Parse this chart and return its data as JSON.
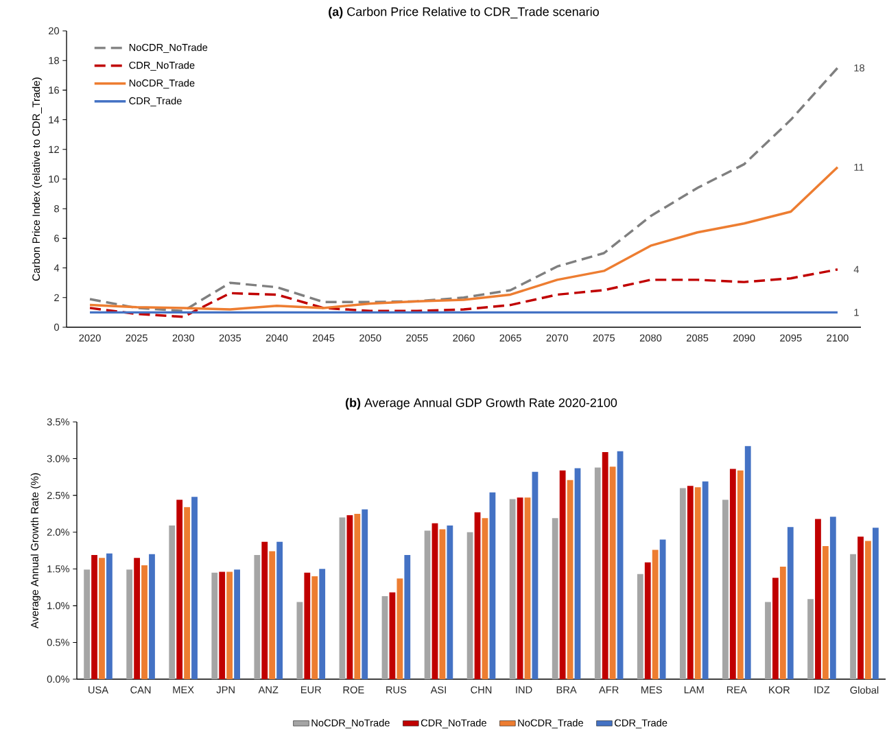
{
  "chart_data": [
    {
      "type": "line",
      "title": "**(a)** Carbon Price Relative to CDR_Trade scenario",
      "ylabel": "Carbon Price Index (relative to CDR_Trade)",
      "x": [
        2020,
        2025,
        2030,
        2035,
        2040,
        2045,
        2050,
        2055,
        2060,
        2065,
        2070,
        2075,
        2080,
        2085,
        2090,
        2095,
        2100
      ],
      "xlim": [
        2017.5,
        2102.5
      ],
      "xticks": [
        2020,
        2025,
        2030,
        2035,
        2040,
        2045,
        2050,
        2055,
        2060,
        2065,
        2070,
        2075,
        2080,
        2085,
        2090,
        2095,
        2100
      ],
      "ylim": [
        0,
        20
      ],
      "yticks": [
        0,
        2,
        4,
        6,
        8,
        10,
        12,
        14,
        16,
        18,
        20
      ],
      "legend": "top left",
      "series": [
        {
          "name": "NoCDR_NoTrade",
          "color": "#7f7f7f",
          "line_style": "dashed",
          "values": [
            1.9,
            1.3,
            1.1,
            3.0,
            2.7,
            1.7,
            1.7,
            1.75,
            2.0,
            2.5,
            4.1,
            5.0,
            7.5,
            9.4,
            11.0,
            14.0,
            17.5
          ],
          "value_labels": [
            null,
            null,
            null,
            null,
            null,
            null,
            null,
            null,
            null,
            null,
            null,
            null,
            null,
            null,
            null,
            null,
            "18"
          ]
        },
        {
          "name": "CDR_NoTrade",
          "color": "#c00000",
          "line_style": "dashed",
          "values": [
            1.3,
            0.9,
            0.7,
            2.3,
            2.2,
            1.3,
            1.1,
            1.1,
            1.2,
            1.5,
            2.2,
            2.5,
            3.2,
            3.2,
            3.05,
            3.3,
            3.9
          ],
          "value_labels": [
            null,
            null,
            null,
            null,
            null,
            null,
            null,
            null,
            null,
            null,
            null,
            null,
            null,
            null,
            null,
            null,
            "4"
          ]
        },
        {
          "name": "NoCDR_Trade",
          "color": "#ed7d31",
          "line_style": "solid",
          "values": [
            1.5,
            1.35,
            1.3,
            1.2,
            1.45,
            1.3,
            1.6,
            1.75,
            1.85,
            2.2,
            3.2,
            3.8,
            5.5,
            6.4,
            7.0,
            7.8,
            10.8
          ],
          "value_labels": [
            null,
            null,
            null,
            null,
            null,
            null,
            null,
            null,
            null,
            null,
            null,
            null,
            null,
            null,
            null,
            null,
            "11"
          ]
        },
        {
          "name": "CDR_Trade",
          "color": "#4472c4",
          "line_style": "solid",
          "values": [
            1,
            1,
            1,
            1,
            1,
            1,
            1,
            1,
            1,
            1,
            1,
            1,
            1,
            1,
            1,
            1,
            1
          ],
          "value_labels": [
            null,
            null,
            null,
            null,
            null,
            null,
            null,
            null,
            null,
            null,
            null,
            null,
            null,
            null,
            null,
            null,
            "1"
          ]
        }
      ]
    },
    {
      "type": "bar",
      "title": "**(b)** Average Annual GDP Growth Rate 2020-2100",
      "ylabel": "Average Annual Growth Rate (%)",
      "categories": [
        "USA",
        "CAN",
        "MEX",
        "JPN",
        "ANZ",
        "EUR",
        "ROE",
        "RUS",
        "ASI",
        "CHN",
        "IND",
        "BRA",
        "AFR",
        "MES",
        "LAM",
        "REA",
        "KOR",
        "IDZ",
        "Global"
      ],
      "ylim": [
        0,
        3.5
      ],
      "yticks": [
        {
          "value": 0,
          "label": "0.0%"
        },
        {
          "value": 0.5,
          "label": "0.5%"
        },
        {
          "value": 1,
          "label": "1.0%"
        },
        {
          "value": 1.5,
          "label": "1.5%"
        },
        {
          "value": 2,
          "label": "2.0%"
        },
        {
          "value": 2.5,
          "label": "2.5%"
        },
        {
          "value": 3,
          "label": "3.0%"
        },
        {
          "value": 3.5,
          "label": "3.5%"
        }
      ],
      "legend": "bottom",
      "series": [
        {
          "name": "NoCDR_NoTrade",
          "color": "#a5a5a5",
          "values": [
            1.49,
            1.49,
            2.09,
            1.45,
            1.69,
            1.05,
            2.2,
            1.13,
            2.02,
            2.0,
            2.45,
            2.19,
            2.88,
            1.43,
            2.6,
            2.44,
            1.05,
            1.09,
            1.7
          ]
        },
        {
          "name": "CDR_NoTrade",
          "color": "#c00000",
          "values": [
            1.69,
            1.65,
            2.44,
            1.46,
            1.87,
            1.45,
            2.23,
            1.18,
            2.12,
            2.27,
            2.47,
            2.84,
            3.09,
            1.59,
            2.63,
            2.86,
            1.38,
            2.18,
            1.94
          ]
        },
        {
          "name": "NoCDR_Trade",
          "color": "#ed7d31",
          "values": [
            1.65,
            1.55,
            2.34,
            1.46,
            1.74,
            1.4,
            2.25,
            1.37,
            2.04,
            2.19,
            2.47,
            2.71,
            2.89,
            1.76,
            2.61,
            2.84,
            1.53,
            1.81,
            1.88
          ]
        },
        {
          "name": "CDR_Trade",
          "color": "#4472c4",
          "values": [
            1.71,
            1.7,
            2.48,
            1.49,
            1.87,
            1.5,
            2.31,
            1.69,
            2.09,
            2.54,
            2.82,
            2.87,
            3.1,
            1.9,
            2.69,
            3.17,
            2.07,
            2.21,
            2.06
          ]
        }
      ]
    }
  ]
}
